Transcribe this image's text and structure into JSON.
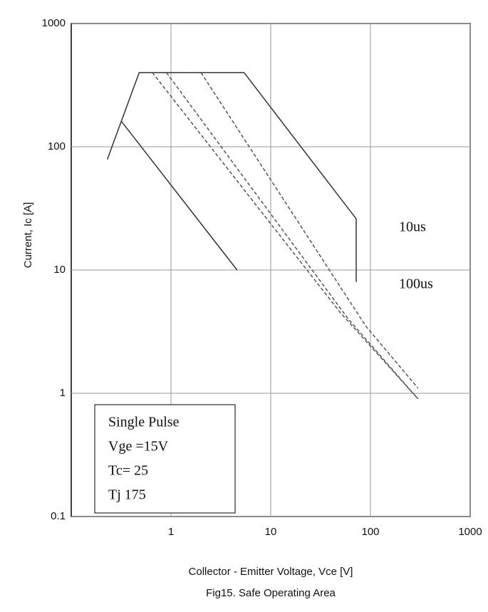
{
  "chart_data": {
    "type": "line",
    "title": "Fig15. Safe Operating Area",
    "x_label": "Collector - Emitter Voltage, Vce [V]",
    "y_label": "Current, Ic [A]",
    "log_x": true,
    "log_y": true,
    "grid": true,
    "xlim": [
      0.1,
      1000
    ],
    "xticks": [
      1,
      10,
      100,
      1000
    ],
    "ylim": [
      0.1,
      1000
    ],
    "yticks": [
      0.1,
      1,
      10,
      100,
      1000
    ],
    "series": [
      {
        "color": "#333333",
        "dash": false,
        "x": [
          0.23,
          0.48,
          5.4,
          72,
          72
        ],
        "values": [
          79,
          400,
          400,
          26,
          8
        ]
      },
      {
        "color": "#555555",
        "dash": true,
        "x": [
          0.65,
          50,
          300
        ],
        "values": [
          400,
          4.5,
          0.9
        ]
      },
      {
        "color": "#555555",
        "dash": true,
        "x": [
          0.9,
          60,
          300
        ],
        "values": [
          400,
          4,
          0.9
        ]
      },
      {
        "color": "#555555",
        "dash": true,
        "x": [
          2.0,
          90,
          300
        ],
        "values": [
          400,
          3.5,
          1.1
        ]
      },
      {
        "color": "#333333",
        "dash": false,
        "x": [
          0.32,
          4.6
        ],
        "values": [
          160,
          10
        ]
      }
    ],
    "annotations": [
      "10us",
      "100us"
    ],
    "conditions": [
      "Single Pulse",
      "Vge =15V",
      "Tc= 25",
      "Tj    175"
    ]
  }
}
